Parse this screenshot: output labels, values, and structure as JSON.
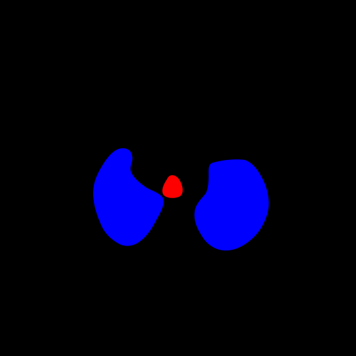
{
  "image": {
    "background_color": "#000000",
    "regions": [
      {
        "label": "",
        "color": "#0000ff"
      },
      {
        "label": "",
        "color": "#0000ff"
      },
      {
        "label": "",
        "color": "#ff0000"
      }
    ]
  }
}
